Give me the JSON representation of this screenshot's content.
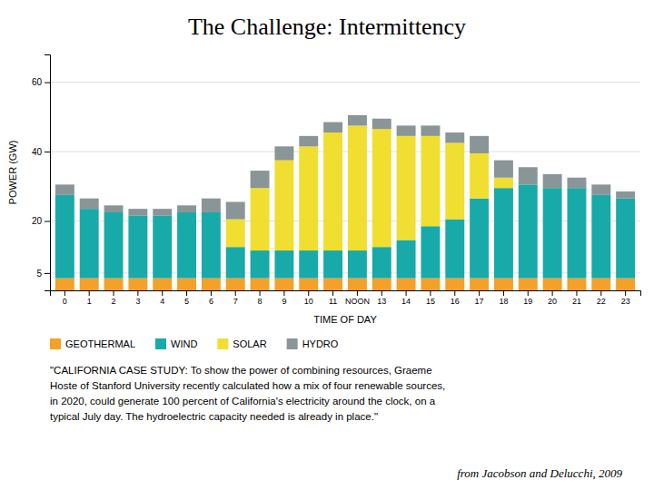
{
  "chart_data": {
    "type": "bar",
    "title": "The Challenge: Intermittency",
    "x_label": "TIME OF DAY",
    "y_label": "POWER (GW)",
    "stacked": true,
    "grid": true,
    "categories": [
      "0",
      "1",
      "2",
      "3",
      "4",
      "5",
      "6",
      "7",
      "8",
      "9",
      "10",
      "11",
      "NOON",
      "13",
      "14",
      "15",
      "16",
      "17",
      "18",
      "19",
      "20",
      "21",
      "22",
      "23"
    ],
    "series": [
      {
        "name": "GEOTHERMAL",
        "color": "#f5a028",
        "values": [
          3.5,
          3.5,
          3.5,
          3.5,
          3.5,
          3.5,
          3.5,
          3.5,
          3.5,
          3.5,
          3.5,
          3.5,
          3.5,
          3.5,
          3.5,
          3.5,
          3.5,
          3.5,
          3.5,
          3.5,
          3.5,
          3.5,
          3.5,
          3.5
        ]
      },
      {
        "name": "WIND",
        "color": "#18aaa8",
        "values": [
          24,
          20,
          19,
          18,
          18,
          19,
          19,
          9,
          8,
          8,
          8,
          8,
          8,
          9,
          11,
          15,
          17,
          23,
          26,
          27,
          26,
          26,
          24,
          23
        ]
      },
      {
        "name": "SOLAR",
        "color": "#f0de30",
        "values": [
          0,
          0,
          0,
          0,
          0,
          0,
          0,
          8,
          18,
          26,
          30,
          34,
          36,
          34,
          30,
          26,
          22,
          13,
          3,
          0,
          0,
          0,
          0,
          0
        ]
      },
      {
        "name": "HYDRO",
        "color": "#8a9598",
        "values": [
          3,
          3,
          2,
          2,
          2,
          2,
          4,
          5,
          5,
          4,
          3,
          3,
          3,
          3,
          3,
          3,
          3,
          5,
          5,
          5,
          4,
          3,
          3,
          2
        ]
      }
    ],
    "ylim": [
      0,
      68
    ],
    "yticks": [
      5,
      20,
      40,
      60
    ],
    "annotations": [
      "\"CALIFORNIA CASE STUDY: To show the power of combining resources, Graeme\nHoste of Stanford University recently calculated how a mix of four renewable sources,\nin 2020, could generate 100 percent of California's electricity around the clock, on a\ntypical July day. The hydroelectric capacity needed is already in place.\"",
      "from Jacobson and Delucchi, 2009"
    ]
  }
}
